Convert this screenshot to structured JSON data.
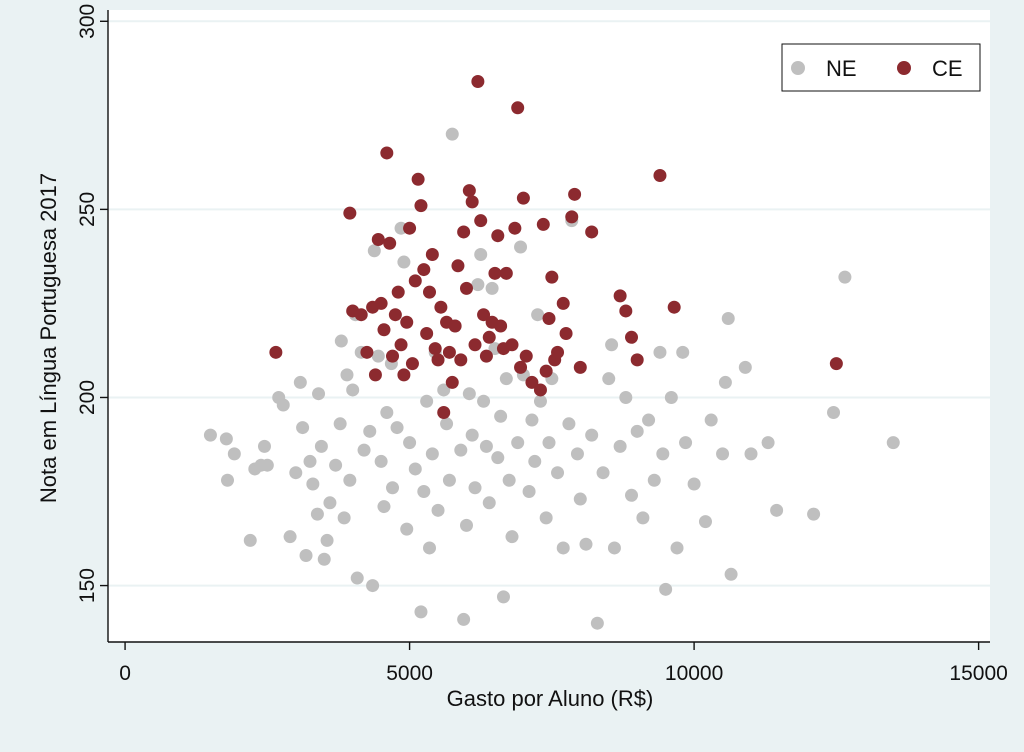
{
  "colors": {
    "outer_background": "#eaf2f3",
    "plot_background": "#ffffff",
    "grid": "#eaf2f3",
    "NE": "#bfbfbf",
    "CE": "#8c2a2f"
  },
  "chart_data": {
    "type": "scatter",
    "title": "",
    "xlabel": "Gasto por Aluno (R$)",
    "ylabel": "Nota em Língua Portuguesa 2017",
    "xlim": [
      -300,
      15200
    ],
    "ylim": [
      135,
      303
    ],
    "xticks": [
      0,
      5000,
      10000,
      15000
    ],
    "yticks": [
      150,
      200,
      250,
      300
    ],
    "grid": true,
    "legend": {
      "position": "top-right",
      "entries": [
        "NE",
        "CE"
      ]
    },
    "series": [
      {
        "name": "NE",
        "color": "#bfbfbf",
        "points": [
          [
            1500,
            190
          ],
          [
            1780,
            189
          ],
          [
            1800,
            178
          ],
          [
            1920,
            185
          ],
          [
            2200,
            162
          ],
          [
            2280,
            181
          ],
          [
            2390,
            182
          ],
          [
            2450,
            187
          ],
          [
            2500,
            182
          ],
          [
            2700,
            200
          ],
          [
            2780,
            198
          ],
          [
            2900,
            163
          ],
          [
            3000,
            180
          ],
          [
            3080,
            204
          ],
          [
            3120,
            192
          ],
          [
            3180,
            158
          ],
          [
            3250,
            183
          ],
          [
            3300,
            177
          ],
          [
            3380,
            169
          ],
          [
            3400,
            201
          ],
          [
            3450,
            187
          ],
          [
            3500,
            157
          ],
          [
            3550,
            162
          ],
          [
            3600,
            172
          ],
          [
            3700,
            182
          ],
          [
            3780,
            193
          ],
          [
            3800,
            215
          ],
          [
            3850,
            168
          ],
          [
            3900,
            206
          ],
          [
            3950,
            178
          ],
          [
            4000,
            202
          ],
          [
            4050,
            222
          ],
          [
            4080,
            152
          ],
          [
            4150,
            212
          ],
          [
            4200,
            186
          ],
          [
            4300,
            191
          ],
          [
            4350,
            150
          ],
          [
            4380,
            239
          ],
          [
            4450,
            211
          ],
          [
            4500,
            183
          ],
          [
            4550,
            171
          ],
          [
            4600,
            196
          ],
          [
            4680,
            209
          ],
          [
            4700,
            176
          ],
          [
            4780,
            192
          ],
          [
            4850,
            245
          ],
          [
            4900,
            236
          ],
          [
            4950,
            165
          ],
          [
            5000,
            188
          ],
          [
            5100,
            181
          ],
          [
            5200,
            143
          ],
          [
            5250,
            175
          ],
          [
            5300,
            199
          ],
          [
            5350,
            160
          ],
          [
            5400,
            185
          ],
          [
            5450,
            212
          ],
          [
            5500,
            170
          ],
          [
            5600,
            202
          ],
          [
            5650,
            193
          ],
          [
            5700,
            178
          ],
          [
            5750,
            270
          ],
          [
            5800,
            219
          ],
          [
            5900,
            186
          ],
          [
            5950,
            141
          ],
          [
            6000,
            166
          ],
          [
            6050,
            201
          ],
          [
            6100,
            190
          ],
          [
            6150,
            176
          ],
          [
            6200,
            230
          ],
          [
            6250,
            238
          ],
          [
            6300,
            199
          ],
          [
            6350,
            187
          ],
          [
            6400,
            172
          ],
          [
            6450,
            229
          ],
          [
            6500,
            213
          ],
          [
            6550,
            184
          ],
          [
            6600,
            195
          ],
          [
            6650,
            147
          ],
          [
            6700,
            205
          ],
          [
            6750,
            178
          ],
          [
            6800,
            163
          ],
          [
            6900,
            188
          ],
          [
            6950,
            240
          ],
          [
            7000,
            206
          ],
          [
            7100,
            175
          ],
          [
            7150,
            194
          ],
          [
            7200,
            183
          ],
          [
            7250,
            222
          ],
          [
            7300,
            199
          ],
          [
            7400,
            168
          ],
          [
            7450,
            188
          ],
          [
            7500,
            205
          ],
          [
            7600,
            180
          ],
          [
            7700,
            160
          ],
          [
            7800,
            193
          ],
          [
            7850,
            247
          ],
          [
            7950,
            185
          ],
          [
            8000,
            173
          ],
          [
            8100,
            161
          ],
          [
            8200,
            190
          ],
          [
            8300,
            140
          ],
          [
            8400,
            180
          ],
          [
            8500,
            205
          ],
          [
            8550,
            214
          ],
          [
            8600,
            160
          ],
          [
            8700,
            187
          ],
          [
            8800,
            200
          ],
          [
            8900,
            174
          ],
          [
            9000,
            191
          ],
          [
            9100,
            168
          ],
          [
            9200,
            194
          ],
          [
            9300,
            178
          ],
          [
            9400,
            212
          ],
          [
            9450,
            185
          ],
          [
            9500,
            149
          ],
          [
            9600,
            200
          ],
          [
            9700,
            160
          ],
          [
            9800,
            212
          ],
          [
            9850,
            188
          ],
          [
            10000,
            177
          ],
          [
            10200,
            167
          ],
          [
            10300,
            194
          ],
          [
            10500,
            185
          ],
          [
            10550,
            204
          ],
          [
            10600,
            221
          ],
          [
            10650,
            153
          ],
          [
            10900,
            208
          ],
          [
            11000,
            185
          ],
          [
            11300,
            188
          ],
          [
            11450,
            170
          ],
          [
            12100,
            169
          ],
          [
            12450,
            196
          ],
          [
            12650,
            232
          ],
          [
            13500,
            188
          ]
        ]
      },
      {
        "name": "CE",
        "color": "#8c2a2f",
        "points": [
          [
            2650,
            212
          ],
          [
            3950,
            249
          ],
          [
            4000,
            223
          ],
          [
            4150,
            222
          ],
          [
            4250,
            212
          ],
          [
            4350,
            224
          ],
          [
            4400,
            206
          ],
          [
            4450,
            242
          ],
          [
            4500,
            225
          ],
          [
            4550,
            218
          ],
          [
            4600,
            265
          ],
          [
            4650,
            241
          ],
          [
            4700,
            211
          ],
          [
            4750,
            222
          ],
          [
            4800,
            228
          ],
          [
            4850,
            214
          ],
          [
            4900,
            206
          ],
          [
            4950,
            220
          ],
          [
            5000,
            245
          ],
          [
            5050,
            209
          ],
          [
            5100,
            231
          ],
          [
            5150,
            258
          ],
          [
            5200,
            251
          ],
          [
            5250,
            234
          ],
          [
            5300,
            217
          ],
          [
            5350,
            228
          ],
          [
            5400,
            238
          ],
          [
            5450,
            213
          ],
          [
            5500,
            210
          ],
          [
            5550,
            224
          ],
          [
            5600,
            196
          ],
          [
            5650,
            220
          ],
          [
            5700,
            212
          ],
          [
            5750,
            204
          ],
          [
            5800,
            219
          ],
          [
            5850,
            235
          ],
          [
            5900,
            210
          ],
          [
            5950,
            244
          ],
          [
            6000,
            229
          ],
          [
            6050,
            255
          ],
          [
            6100,
            252
          ],
          [
            6150,
            214
          ],
          [
            6200,
            284
          ],
          [
            6250,
            247
          ],
          [
            6300,
            222
          ],
          [
            6350,
            211
          ],
          [
            6400,
            216
          ],
          [
            6450,
            220
          ],
          [
            6500,
            233
          ],
          [
            6550,
            243
          ],
          [
            6600,
            219
          ],
          [
            6650,
            213
          ],
          [
            6700,
            233
          ],
          [
            6800,
            214
          ],
          [
            6850,
            245
          ],
          [
            6900,
            277
          ],
          [
            6950,
            208
          ],
          [
            7000,
            253
          ],
          [
            7050,
            211
          ],
          [
            7150,
            204
          ],
          [
            7300,
            202
          ],
          [
            7350,
            246
          ],
          [
            7400,
            207
          ],
          [
            7450,
            221
          ],
          [
            7500,
            232
          ],
          [
            7550,
            210
          ],
          [
            7600,
            212
          ],
          [
            7700,
            225
          ],
          [
            7750,
            217
          ],
          [
            7850,
            248
          ],
          [
            7900,
            254
          ],
          [
            8000,
            208
          ],
          [
            8200,
            244
          ],
          [
            8700,
            227
          ],
          [
            8800,
            223
          ],
          [
            8900,
            216
          ],
          [
            9000,
            210
          ],
          [
            9400,
            259
          ],
          [
            9650,
            224
          ],
          [
            12500,
            209
          ]
        ]
      }
    ]
  }
}
